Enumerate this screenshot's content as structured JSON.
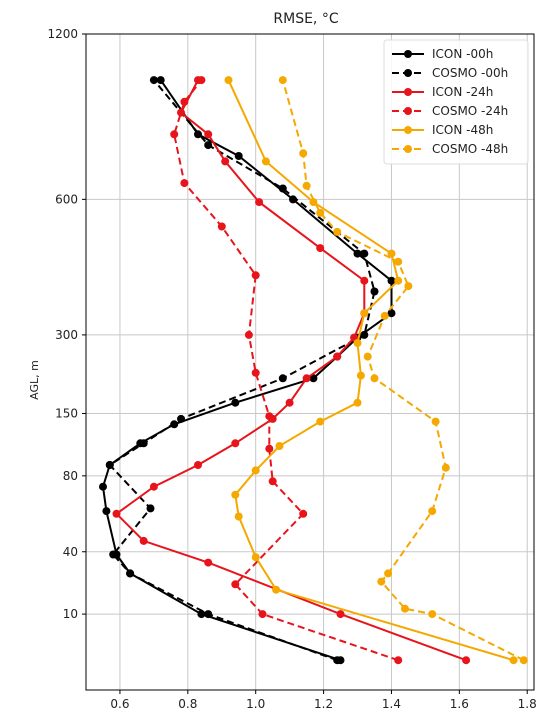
{
  "chart_data": {
    "type": "line",
    "title": "RMSE, °C",
    "xlabel": "",
    "ylabel": "AGL, m",
    "xlim": [
      0.5,
      1.82
    ],
    "x_ticks": [
      0.6,
      0.8,
      1.0,
      1.2,
      1.4,
      1.6,
      1.8
    ],
    "x_tick_labels": [
      "0.6",
      "0.8",
      "1.0",
      "1.2",
      "1.4",
      "1.6",
      "1.8"
    ],
    "y_tick_labels": [
      "10",
      "40",
      "80",
      "150",
      "300",
      "600",
      "1200"
    ],
    "y_scale": "categorical",
    "grid": true,
    "legend": "top-right",
    "series": [
      {
        "name": "ICON -00h",
        "color": "#000000",
        "dash": "solid",
        "points": [
          [
            1.25,
            0.0
          ],
          [
            0.84,
            0.85
          ],
          [
            0.63,
            1.6
          ],
          [
            0.59,
            1.95
          ],
          [
            0.56,
            2.75
          ],
          [
            0.55,
            3.2
          ],
          [
            0.57,
            3.6
          ],
          [
            0.66,
            4.0
          ],
          [
            0.76,
            4.35
          ],
          [
            0.94,
            4.75
          ],
          [
            1.17,
            5.2
          ],
          [
            1.24,
            5.6
          ],
          [
            1.3,
            5.95
          ],
          [
            1.4,
            6.4
          ],
          [
            1.4,
            7.0
          ],
          [
            1.3,
            7.5
          ],
          [
            1.11,
            8.5
          ],
          [
            0.95,
            9.3
          ],
          [
            0.83,
            9.7
          ],
          [
            0.72,
            10.7
          ]
        ]
      },
      {
        "name": "COSMO -00h",
        "color": "#000000",
        "dash": "dashed",
        "points": [
          [
            1.24,
            0.0
          ],
          [
            0.86,
            0.85
          ],
          [
            0.63,
            1.6
          ],
          [
            0.58,
            1.95
          ],
          [
            0.69,
            2.8
          ],
          [
            0.57,
            3.6
          ],
          [
            0.67,
            4.0
          ],
          [
            0.78,
            4.45
          ],
          [
            1.08,
            5.2
          ],
          [
            1.32,
            6.0
          ],
          [
            1.35,
            6.8
          ],
          [
            1.32,
            7.5
          ],
          [
            1.08,
            8.7
          ],
          [
            0.86,
            9.5
          ],
          [
            0.7,
            10.7
          ]
        ]
      },
      {
        "name": "ICON -24h",
        "color": "#e8141c",
        "dash": "solid",
        "points": [
          [
            1.62,
            0.0
          ],
          [
            1.25,
            0.85
          ],
          [
            0.86,
            1.8
          ],
          [
            0.67,
            2.2
          ],
          [
            0.59,
            2.7
          ],
          [
            0.7,
            3.2
          ],
          [
            0.83,
            3.6
          ],
          [
            0.94,
            4.0
          ],
          [
            1.05,
            4.45
          ],
          [
            1.1,
            4.75
          ],
          [
            1.15,
            5.2
          ],
          [
            1.24,
            5.6
          ],
          [
            1.29,
            5.95
          ],
          [
            1.32,
            6.4
          ],
          [
            1.32,
            7.0
          ],
          [
            1.19,
            7.6
          ],
          [
            1.01,
            8.45
          ],
          [
            0.91,
            9.2
          ],
          [
            0.86,
            9.7
          ],
          [
            0.78,
            10.1
          ],
          [
            0.83,
            10.7
          ]
        ]
      },
      {
        "name": "COSMO -24h",
        "color": "#e8141c",
        "dash": "dashed",
        "points": [
          [
            1.42,
            0.0
          ],
          [
            1.02,
            0.85
          ],
          [
            0.94,
            1.4
          ],
          [
            1.14,
            2.7
          ],
          [
            1.05,
            3.3
          ],
          [
            1.04,
            3.9
          ],
          [
            1.04,
            4.5
          ],
          [
            1.0,
            5.3
          ],
          [
            0.98,
            6.0
          ],
          [
            1.0,
            7.1
          ],
          [
            0.9,
            8.0
          ],
          [
            0.79,
            8.8
          ],
          [
            0.76,
            9.7
          ],
          [
            0.79,
            10.3
          ],
          [
            0.84,
            10.7
          ]
        ]
      },
      {
        "name": "ICON -48h",
        "color": "#f5a800",
        "dash": "solid",
        "points": [
          [
            1.76,
            0.0
          ],
          [
            1.06,
            1.3
          ],
          [
            1.0,
            1.9
          ],
          [
            0.95,
            2.65
          ],
          [
            0.94,
            3.05
          ],
          [
            1.0,
            3.5
          ],
          [
            1.07,
            3.95
          ],
          [
            1.19,
            4.4
          ],
          [
            1.3,
            4.75
          ],
          [
            1.31,
            5.25
          ],
          [
            1.3,
            5.85
          ],
          [
            1.32,
            6.4
          ],
          [
            1.42,
            7.0
          ],
          [
            1.4,
            7.5
          ],
          [
            1.17,
            8.45
          ],
          [
            1.03,
            9.2
          ],
          [
            0.92,
            10.7
          ]
        ]
      },
      {
        "name": "COSMO -48h",
        "color": "#f5a800",
        "dash": "dashed",
        "points": [
          [
            1.79,
            0.0
          ],
          [
            1.52,
            0.85
          ],
          [
            1.44,
            0.95
          ],
          [
            1.37,
            1.45
          ],
          [
            1.39,
            1.6
          ],
          [
            1.52,
            2.75
          ],
          [
            1.56,
            3.55
          ],
          [
            1.53,
            4.4
          ],
          [
            1.35,
            5.2
          ],
          [
            1.33,
            5.6
          ],
          [
            1.38,
            6.35
          ],
          [
            1.45,
            6.9
          ],
          [
            1.42,
            7.35
          ],
          [
            1.24,
            7.9
          ],
          [
            1.19,
            8.25
          ],
          [
            1.15,
            8.75
          ],
          [
            1.14,
            9.35
          ],
          [
            1.08,
            10.7
          ]
        ]
      }
    ]
  }
}
